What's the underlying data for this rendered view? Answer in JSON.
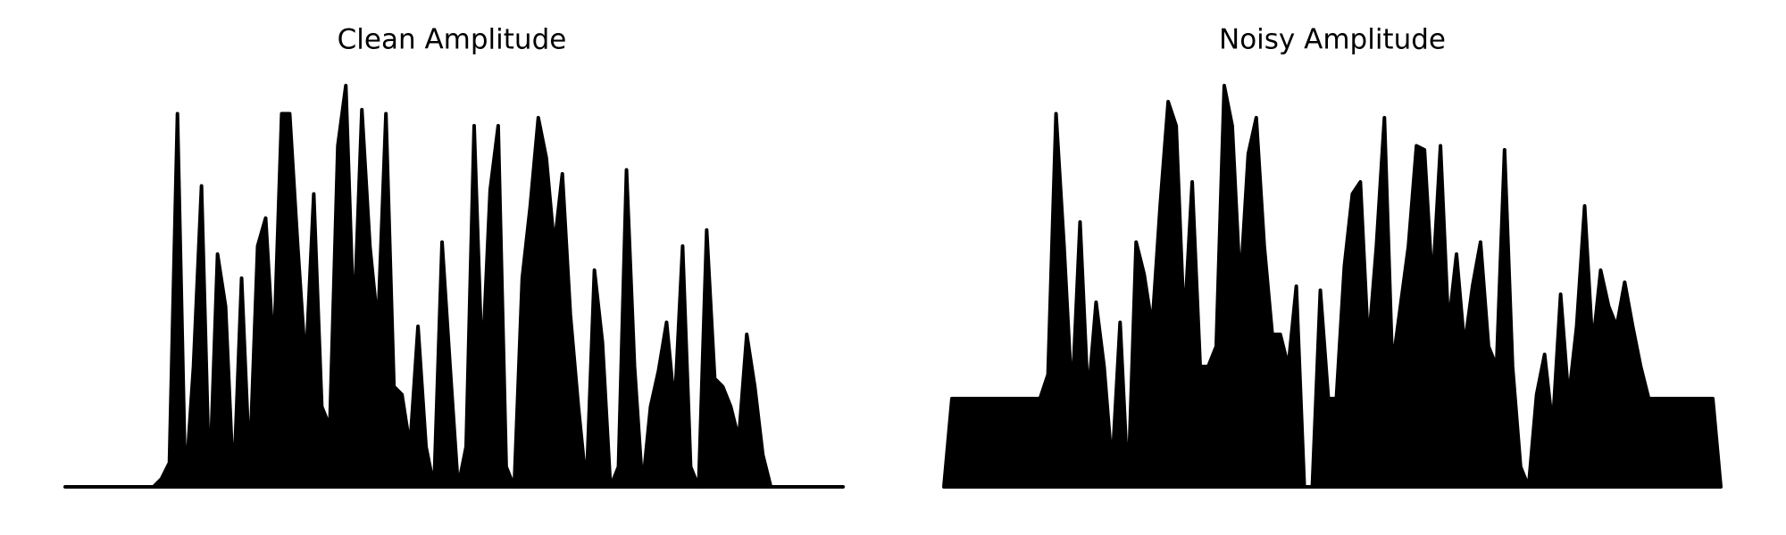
{
  "chart_data": [
    {
      "type": "area",
      "title": "Clean Amplitude",
      "color": "#000000",
      "ylim": [
        0,
        1
      ],
      "values": [
        0,
        0,
        0,
        0,
        0,
        0,
        0,
        0,
        0,
        0,
        0,
        0,
        0.02,
        0.06,
        0.93,
        0,
        0.3,
        0.75,
        0,
        0.58,
        0.45,
        0,
        0.52,
        0.05,
        0.6,
        0.67,
        0.33,
        0.93,
        0.93,
        0.6,
        0.3,
        0.73,
        0.2,
        0.15,
        0.85,
        1.0,
        0.4,
        0.94,
        0.6,
        0.4,
        0.93,
        0.25,
        0.23,
        0.1,
        0.4,
        0.1,
        0,
        0.61,
        0.3,
        0,
        0.1,
        0.9,
        0.3,
        0.74,
        0.9,
        0.05,
        0,
        0.52,
        0.7,
        0.92,
        0.82,
        0.6,
        0.78,
        0.43,
        0.2,
        0,
        0.54,
        0.36,
        0,
        0.05,
        0.79,
        0.3,
        0,
        0.2,
        0.29,
        0.41,
        0.2,
        0.6,
        0.05,
        0,
        0.64,
        0.27,
        0.25,
        0.2,
        0.12,
        0.38,
        0.25,
        0.08,
        0,
        0,
        0,
        0,
        0,
        0,
        0,
        0,
        0,
        0
      ]
    },
    {
      "type": "area",
      "title": "Noisy Amplitude",
      "color": "#000000",
      "ylim": [
        0,
        1
      ],
      "values": [
        0,
        0.22,
        0.22,
        0.22,
        0.22,
        0.22,
        0.22,
        0.22,
        0.22,
        0.22,
        0.22,
        0.22,
        0.22,
        0.28,
        0.93,
        0.6,
        0.22,
        0.66,
        0.22,
        0.46,
        0.3,
        0.05,
        0.41,
        0,
        0.61,
        0.53,
        0.4,
        0.7,
        0.96,
        0.9,
        0.4,
        0.76,
        0.3,
        0.3,
        0.35,
        1.0,
        0.9,
        0.5,
        0.83,
        0.92,
        0.6,
        0.38,
        0.38,
        0.3,
        0.5,
        0,
        0,
        0.49,
        0.22,
        0.22,
        0.55,
        0.73,
        0.76,
        0.35,
        0.6,
        0.92,
        0.3,
        0.45,
        0.6,
        0.85,
        0.84,
        0.5,
        0.85,
        0.4,
        0.58,
        0.35,
        0.5,
        0.61,
        0.35,
        0.3,
        0.84,
        0.3,
        0.05,
        0,
        0.23,
        0.33,
        0.15,
        0.48,
        0.22,
        0.4,
        0.7,
        0.35,
        0.54,
        0.45,
        0.4,
        0.51,
        0.4,
        0.3,
        0.22,
        0.22,
        0.22,
        0.22,
        0.22,
        0.22,
        0.22,
        0.22,
        0.22,
        0
      ]
    }
  ]
}
